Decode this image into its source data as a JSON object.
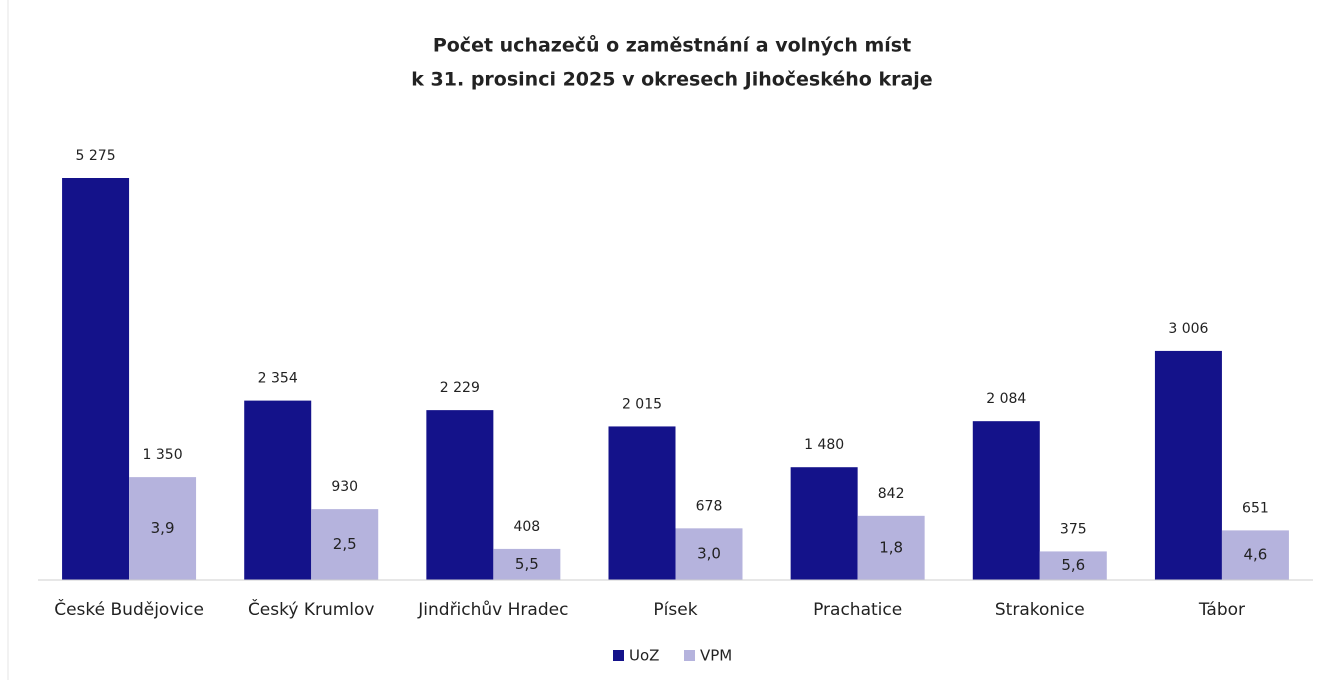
{
  "chart_data": {
    "type": "bar",
    "title": [
      "Počet uchazečů o zaměstnání a volných míst",
      "k 31. prosinci 2025 v okresech Jihočeského kraje"
    ],
    "categories": [
      "České Budějovice",
      "Český Krumlov",
      "Jindřichův Hradec",
      "Písek",
      "Prachatice",
      "Strakonice",
      "Tábor"
    ],
    "series": [
      {
        "name": "UoZ",
        "color": "#14128a",
        "values": [
          5275,
          2354,
          2229,
          2015,
          1480,
          2084,
          3006
        ],
        "value_labels": [
          "5 275",
          "2 354",
          "2 229",
          "2 015",
          "1 480",
          "2 084",
          "3 006"
        ]
      },
      {
        "name": "VPM",
        "color": "#b5b3dd",
        "values": [
          1350,
          930,
          408,
          678,
          842,
          375,
          651
        ],
        "value_labels": [
          "1 350",
          "930",
          "408",
          "678",
          "842",
          "375",
          "651"
        ],
        "inner_values": [
          3.9,
          2.5,
          5.5,
          3.0,
          1.8,
          5.6,
          4.6
        ],
        "inner_labels": [
          "3,9",
          "2,5",
          "5,5",
          "3,0",
          "1,8",
          "5,6",
          "4,6"
        ]
      }
    ],
    "legend": "bottom"
  }
}
